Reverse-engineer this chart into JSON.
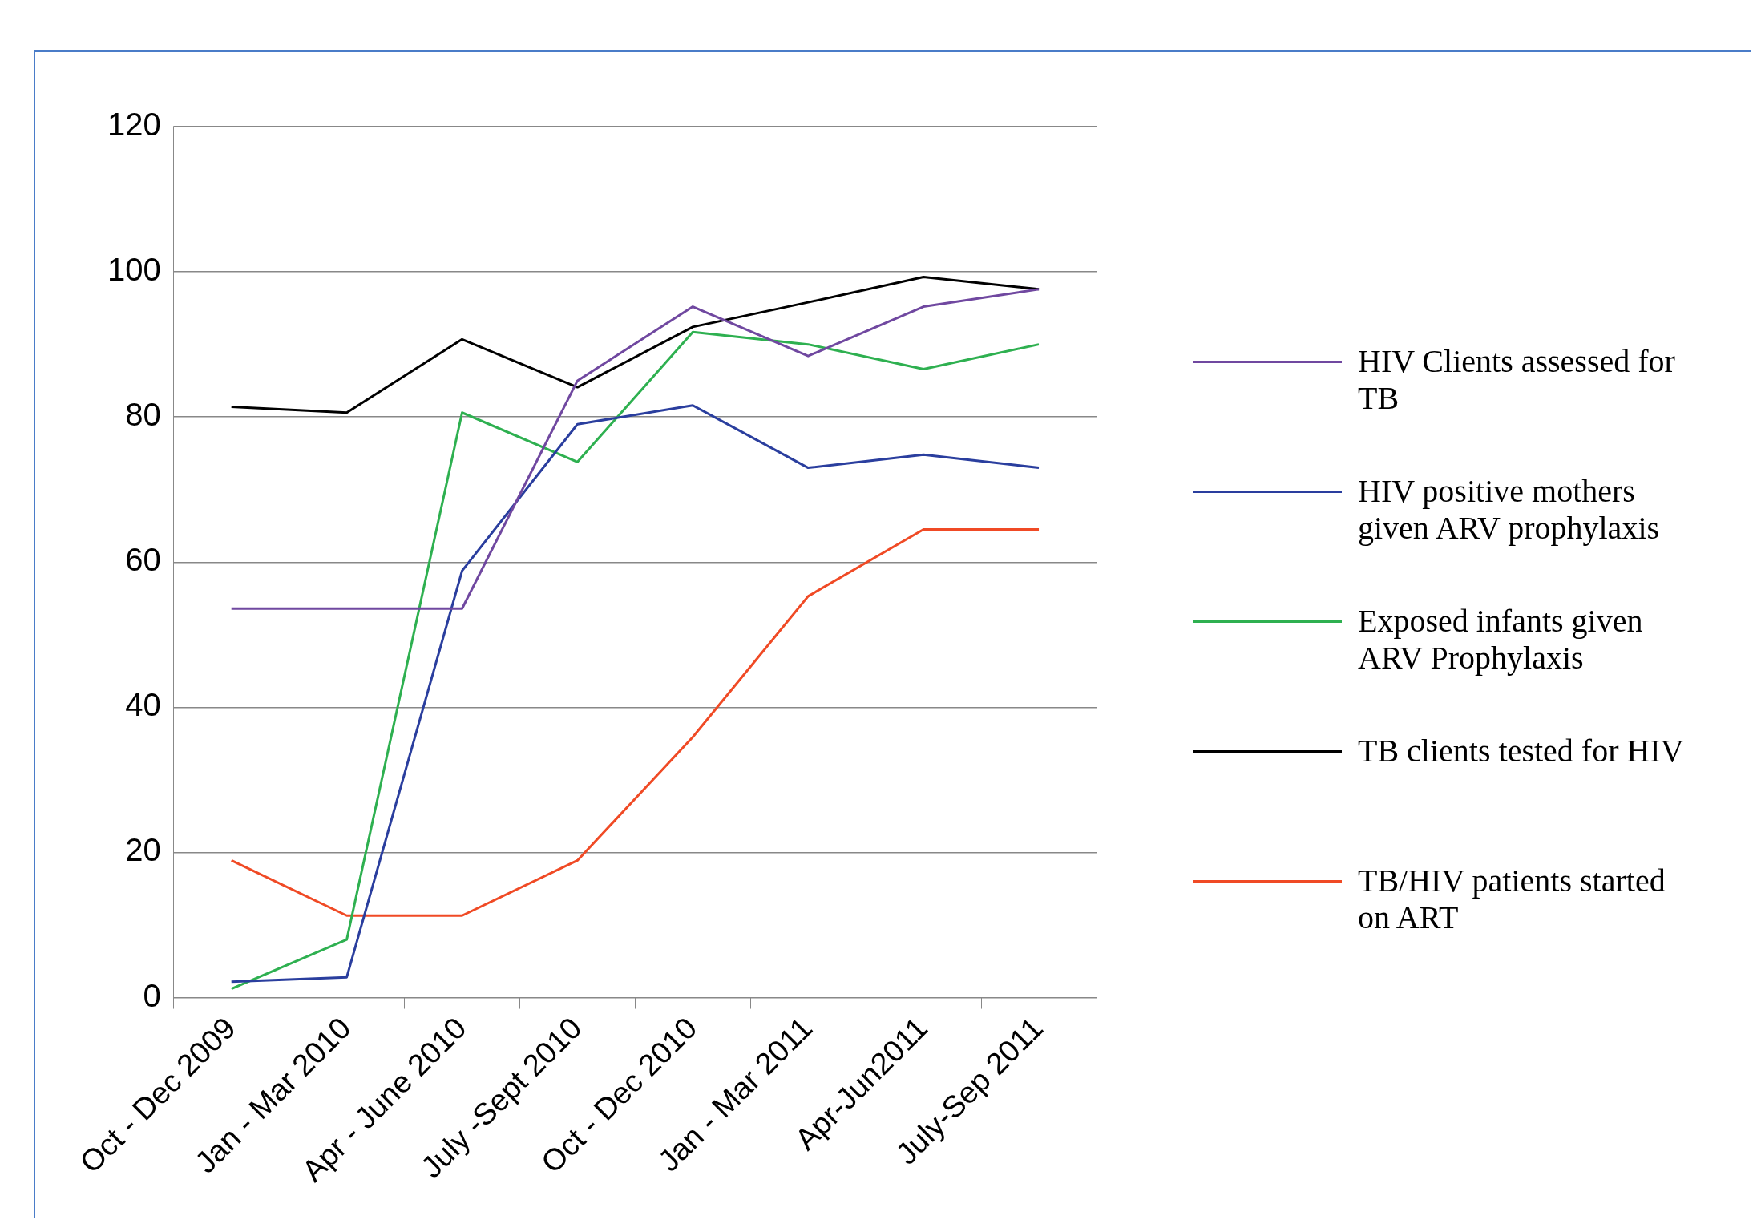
{
  "chart_data": {
    "type": "line",
    "categories": [
      "Oct - Dec 2009",
      "Jan - Mar 2010",
      "Apr - June 2010",
      "July -Sept 2010",
      "Oct - Dec 2010",
      "Jan - Mar 2011",
      "Apr-Jun2011",
      "July-Sep 2011"
    ],
    "series": [
      {
        "name": "HIV Clients assessed  for TB",
        "color": "#7048a0",
        "values": [
          53.6,
          53.6,
          53.6,
          85,
          95.2,
          88.4,
          95.2,
          97.6
        ]
      },
      {
        "name": "HIV positive mothers given ARV prophylaxis",
        "color": "#2a3e9e",
        "values": [
          2.2,
          2.8,
          58.8,
          79,
          81.6,
          73,
          74.8,
          73
        ]
      },
      {
        "name": "Exposed infants given ARV Prophylaxis",
        "color": "#2eb050",
        "values": [
          1.2,
          8,
          80.6,
          73.8,
          91.7,
          90,
          86.6,
          90
        ]
      },
      {
        "name": "TB clients tested for HIV",
        "color": "#000000",
        "values": [
          81.4,
          80.6,
          90.7,
          84.1,
          92.4,
          95.8,
          99.3,
          97.6
        ]
      },
      {
        "name": "TB/HIV patients started on ART",
        "color": "#f04a25",
        "values": [
          18.9,
          11.3,
          11.3,
          18.9,
          35.9,
          55.3,
          64.5,
          64.5
        ]
      }
    ],
    "ylim": [
      0,
      120
    ],
    "yticks": [
      0,
      20,
      40,
      60,
      80,
      100,
      120
    ],
    "grid": "y",
    "legend": "right",
    "marker": "none",
    "line_style": "solid"
  }
}
